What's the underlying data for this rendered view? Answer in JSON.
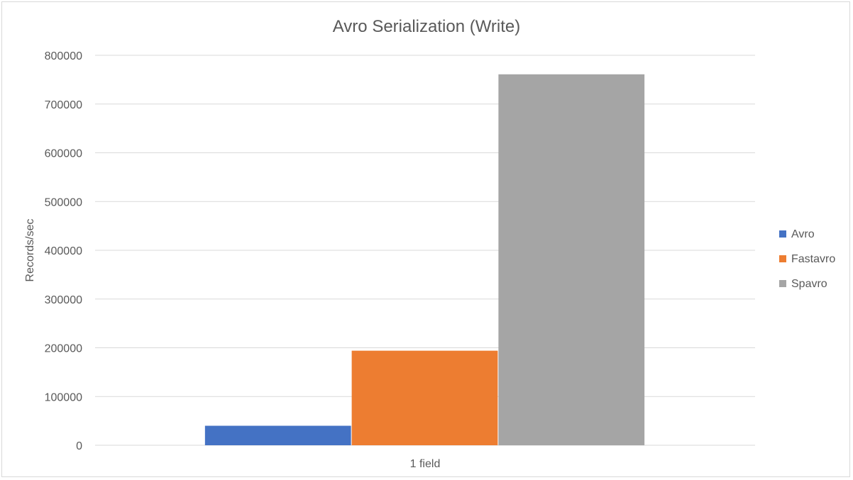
{
  "chart_data": {
    "type": "bar",
    "title": "Avro Serialization (Write)",
    "xlabel": "",
    "ylabel": "Records/sec",
    "categories": [
      "1 field"
    ],
    "series": [
      {
        "name": "Avro",
        "values": [
          40000
        ],
        "color": "#4472c4"
      },
      {
        "name": "Fastavro",
        "values": [
          194000
        ],
        "color": "#ed7d31"
      },
      {
        "name": "Spavro",
        "values": [
          761000
        ],
        "color": "#a5a5a5"
      }
    ],
    "ylim": [
      0,
      800000
    ],
    "yticks": [
      "0",
      "100000",
      "200000",
      "300000",
      "400000",
      "500000",
      "600000",
      "700000",
      "800000"
    ],
    "grid": true,
    "legend_position": "right",
    "gridline_color": "#d9d9d9",
    "text_color": "#595959"
  }
}
